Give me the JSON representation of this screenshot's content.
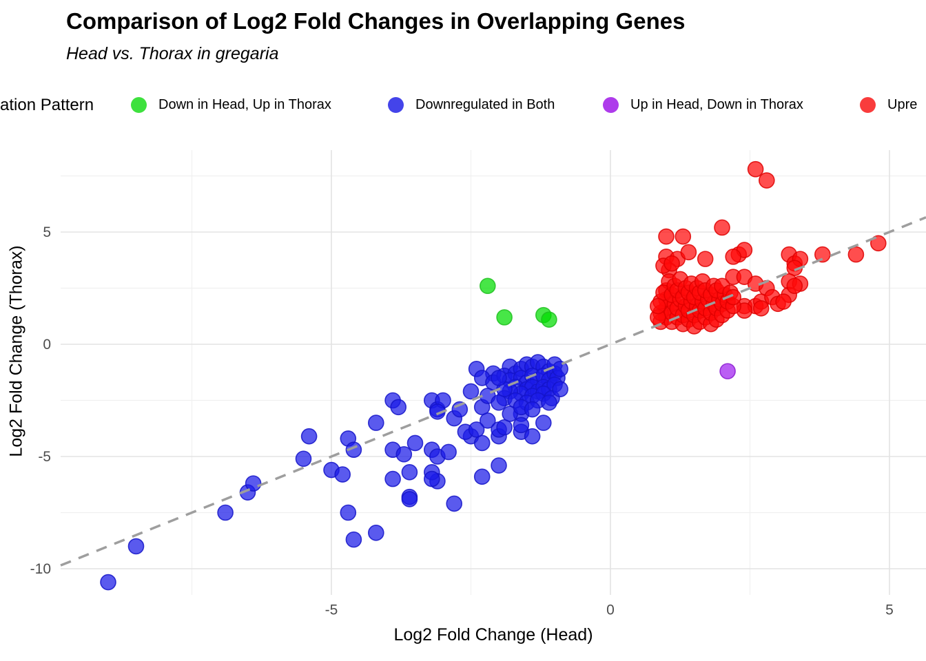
{
  "header": {
    "title": "Comparison of Log2 Fold Changes in Overlapping Genes",
    "subtitle": "Head vs. Thorax in gregaria"
  },
  "legend": {
    "title": "ation Pattern",
    "position": "top",
    "items": [
      {
        "label": "Down in Head, Up in Thorax",
        "color": "#3EE13E"
      },
      {
        "label": "Downregulated in Both",
        "color": "#4444EA"
      },
      {
        "label": "Up in Head, Down in Thorax",
        "color": "#AE3BEB"
      },
      {
        "label": "Upre",
        "color": "#F93C3C"
      }
    ]
  },
  "chart_data": {
    "type": "scatter",
    "title": "Comparison of Log2 Fold Changes in Overlapping Genes",
    "subtitle": "Head vs. Thorax in gregaria",
    "xlabel": "Log2 Fold Change (Head)",
    "ylabel": "Log2 Fold Change (Thorax)",
    "xlim": [
      -9.9,
      5.65
    ],
    "ylim": [
      -11.2,
      8.7
    ],
    "x_ticks": [
      -5,
      0,
      5
    ],
    "y_ticks": [
      -10,
      -5,
      0,
      5
    ],
    "x_minor_ticks": [
      -7.5,
      -2.5,
      2.5
    ],
    "y_minor_ticks": [
      -7.5,
      -2.5,
      2.5,
      7.5
    ],
    "grid": true,
    "legend_title": "ation Pattern",
    "identity_line": {
      "equation": "y = x",
      "style": "dashed",
      "color": "#9E9E9E"
    },
    "tick_label_color": "#4D4D4D",
    "series": [
      {
        "name": "Down in Head, Up in Thorax",
        "color": "#00DD00",
        "stroke": "#1FBE1F",
        "points": [
          [
            -2.2,
            2.6
          ],
          [
            -1.9,
            1.2
          ],
          [
            -1.2,
            1.3
          ],
          [
            -1.1,
            1.1
          ]
        ]
      },
      {
        "name": "Downregulated in Both",
        "color": "#1A1AE8",
        "stroke": "#1414C8",
        "points": [
          [
            -9.0,
            -10.6
          ],
          [
            -8.5,
            -9.0
          ],
          [
            -6.9,
            -7.5
          ],
          [
            -6.5,
            -6.6
          ],
          [
            -6.4,
            -6.2
          ],
          [
            -5.5,
            -5.1
          ],
          [
            -5.4,
            -4.1
          ],
          [
            -5.0,
            -5.6
          ],
          [
            -4.8,
            -5.8
          ],
          [
            -4.7,
            -4.2
          ],
          [
            -4.6,
            -4.7
          ],
          [
            -4.2,
            -3.5
          ],
          [
            -3.9,
            -2.5
          ],
          [
            -3.8,
            -2.8
          ],
          [
            -4.7,
            -7.5
          ],
          [
            -4.6,
            -8.7
          ],
          [
            -4.2,
            -8.4
          ],
          [
            -3.9,
            -4.7
          ],
          [
            -3.7,
            -4.9
          ],
          [
            -3.5,
            -4.4
          ],
          [
            -3.6,
            -6.8
          ],
          [
            -3.9,
            -6.0
          ],
          [
            -3.6,
            -5.7
          ],
          [
            -3.6,
            -6.9
          ],
          [
            -3.1,
            -6.1
          ],
          [
            -3.2,
            -5.7
          ],
          [
            -3.2,
            -6.0
          ],
          [
            -2.8,
            -7.1
          ],
          [
            -2.3,
            -5.9
          ],
          [
            -2.0,
            -5.4
          ],
          [
            -3.2,
            -2.5
          ],
          [
            -3.1,
            -2.9
          ],
          [
            -3.2,
            -4.7
          ],
          [
            -3.1,
            -5.0
          ],
          [
            -2.9,
            -4.8
          ],
          [
            -3.0,
            -2.5
          ],
          [
            -3.1,
            -3.0
          ],
          [
            -2.8,
            -3.3
          ],
          [
            -2.7,
            -2.9
          ],
          [
            -2.5,
            -4.1
          ],
          [
            -2.3,
            -4.4
          ],
          [
            -2.2,
            -3.4
          ],
          [
            -2.0,
            -4.1
          ],
          [
            -2.0,
            -3.8
          ],
          [
            -1.9,
            -3.7
          ],
          [
            -1.6,
            -3.9
          ],
          [
            -1.4,
            -4.1
          ],
          [
            -1.6,
            -3.1
          ],
          [
            -1.8,
            -3.1
          ],
          [
            -1.6,
            -3.6
          ],
          [
            -2.6,
            -3.9
          ],
          [
            -2.4,
            -3.8
          ],
          [
            -1.2,
            -3.5
          ],
          [
            -2.4,
            -1.1
          ],
          [
            -2.1,
            -1.3
          ],
          [
            -2.3,
            -1.5
          ],
          [
            -2.5,
            -2.1
          ],
          [
            -2.1,
            -1.7
          ],
          [
            -1.8,
            -1.0
          ],
          [
            -2.3,
            -2.8
          ],
          [
            -2.2,
            -2.3
          ],
          [
            -1.9,
            -1.4
          ],
          [
            -1.7,
            -1.3
          ],
          [
            -1.6,
            -1.1
          ],
          [
            -1.5,
            -0.9
          ],
          [
            -1.4,
            -1.0
          ],
          [
            -1.3,
            -0.8
          ],
          [
            -1.2,
            -1.0
          ],
          [
            -1.1,
            -1.2
          ],
          [
            -1.0,
            -0.9
          ],
          [
            -1.8,
            -1.6
          ],
          [
            -1.6,
            -1.5
          ],
          [
            -1.5,
            -1.7
          ],
          [
            -1.4,
            -1.4
          ],
          [
            -1.3,
            -1.6
          ],
          [
            -1.2,
            -1.4
          ],
          [
            -1.1,
            -1.6
          ],
          [
            -1.0,
            -1.3
          ],
          [
            -0.95,
            -1.5
          ],
          [
            -1.7,
            -1.9
          ],
          [
            -1.5,
            -2.0
          ],
          [
            -1.4,
            -1.9
          ],
          [
            -1.3,
            -2.1
          ],
          [
            -1.2,
            -1.9
          ],
          [
            -1.1,
            -2.0
          ],
          [
            -1.0,
            -1.8
          ],
          [
            -1.6,
            -2.2
          ],
          [
            -1.4,
            -2.3
          ],
          [
            -1.2,
            -2.2
          ],
          [
            -1.05,
            -2.4
          ],
          [
            -1.8,
            -2.1
          ],
          [
            -1.9,
            -2.4
          ],
          [
            -1.7,
            -2.5
          ],
          [
            -1.5,
            -2.6
          ],
          [
            -1.3,
            -2.5
          ],
          [
            -1.1,
            -2.6
          ],
          [
            -1.6,
            -2.8
          ],
          [
            -1.4,
            -2.9
          ],
          [
            -1.9,
            -2.0
          ],
          [
            -2.0,
            -1.5
          ],
          [
            -2.0,
            -2.6
          ],
          [
            -0.9,
            -1.1
          ],
          [
            -0.9,
            -2.0
          ]
        ]
      },
      {
        "name": "Up in Head, Down in Thorax",
        "color": "#A020F0",
        "stroke": "#8A1BD0",
        "points": [
          [
            2.1,
            -1.2
          ]
        ]
      },
      {
        "name": "Upre",
        "color": "#FF0A0A",
        "stroke": "#DE0000",
        "points": [
          [
            2.6,
            7.8
          ],
          [
            2.8,
            7.3
          ],
          [
            2.0,
            5.2
          ],
          [
            1.0,
            4.8
          ],
          [
            1.3,
            4.8
          ],
          [
            1.0,
            3.9
          ],
          [
            1.2,
            3.8
          ],
          [
            1.4,
            4.1
          ],
          [
            1.7,
            3.8
          ],
          [
            2.3,
            4.0
          ],
          [
            2.4,
            4.2
          ],
          [
            2.2,
            3.9
          ],
          [
            2.2,
            3.0
          ],
          [
            2.4,
            3.0
          ],
          [
            2.6,
            2.7
          ],
          [
            2.8,
            2.5
          ],
          [
            3.2,
            4.0
          ],
          [
            3.3,
            3.6
          ],
          [
            3.4,
            3.8
          ],
          [
            3.3,
            3.4
          ],
          [
            3.2,
            2.8
          ],
          [
            3.4,
            2.7
          ],
          [
            3.2,
            2.2
          ],
          [
            2.4,
            1.7
          ],
          [
            2.6,
            1.7
          ],
          [
            2.7,
            1.9
          ],
          [
            2.7,
            1.6
          ],
          [
            2.9,
            2.1
          ],
          [
            3.0,
            1.8
          ],
          [
            3.1,
            1.9
          ],
          [
            3.8,
            4.0
          ],
          [
            4.4,
            4.0
          ],
          [
            4.8,
            4.5
          ],
          [
            2.4,
            1.5
          ],
          [
            1.05,
            3.3
          ],
          [
            0.95,
            3.5
          ],
          [
            1.1,
            3.6
          ],
          [
            3.3,
            2.6
          ],
          [
            1.0,
            1.2
          ],
          [
            1.0,
            1.6
          ],
          [
            1.0,
            2.0
          ],
          [
            1.0,
            2.4
          ],
          [
            1.05,
            2.8
          ],
          [
            0.9,
            1.0
          ],
          [
            0.9,
            1.4
          ],
          [
            0.9,
            1.9
          ],
          [
            0.95,
            2.3
          ],
          [
            1.1,
            1.0
          ],
          [
            1.1,
            1.4
          ],
          [
            1.15,
            1.8
          ],
          [
            1.1,
            2.2
          ],
          [
            1.15,
            2.6
          ],
          [
            1.2,
            1.2
          ],
          [
            1.2,
            1.6
          ],
          [
            1.25,
            2.0
          ],
          [
            1.2,
            2.4
          ],
          [
            1.25,
            2.9
          ],
          [
            1.3,
            0.9
          ],
          [
            1.3,
            1.3
          ],
          [
            1.35,
            1.7
          ],
          [
            1.3,
            2.1
          ],
          [
            1.35,
            2.5
          ],
          [
            1.4,
            1.1
          ],
          [
            1.4,
            1.5
          ],
          [
            1.45,
            1.9
          ],
          [
            1.4,
            2.3
          ],
          [
            1.45,
            2.7
          ],
          [
            1.5,
            0.8
          ],
          [
            1.5,
            1.3
          ],
          [
            1.55,
            1.7
          ],
          [
            1.5,
            2.1
          ],
          [
            1.55,
            2.5
          ],
          [
            1.6,
            1.0
          ],
          [
            1.6,
            1.5
          ],
          [
            1.65,
            1.9
          ],
          [
            1.6,
            2.3
          ],
          [
            1.65,
            2.8
          ],
          [
            1.7,
            1.2
          ],
          [
            1.7,
            1.6
          ],
          [
            1.75,
            2.0
          ],
          [
            1.7,
            2.4
          ],
          [
            1.8,
            0.9
          ],
          [
            1.8,
            1.4
          ],
          [
            1.85,
            1.8
          ],
          [
            1.8,
            2.2
          ],
          [
            1.85,
            2.6
          ],
          [
            1.9,
            1.1
          ],
          [
            1.9,
            1.6
          ],
          [
            1.95,
            2.0
          ],
          [
            1.9,
            2.4
          ],
          [
            2.0,
            1.3
          ],
          [
            2.0,
            1.8
          ],
          [
            2.05,
            2.2
          ],
          [
            2.0,
            2.6
          ],
          [
            2.1,
            1.5
          ],
          [
            2.1,
            1.9
          ],
          [
            2.15,
            2.3
          ],
          [
            2.2,
            1.7
          ],
          [
            2.2,
            2.1
          ],
          [
            0.85,
            1.2
          ],
          [
            0.85,
            1.7
          ]
        ]
      }
    ]
  }
}
